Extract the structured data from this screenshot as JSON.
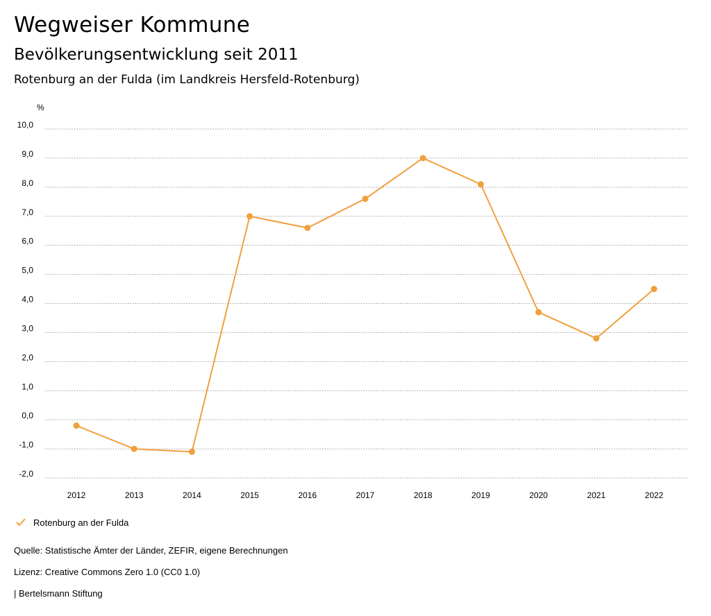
{
  "header": {
    "title": "Wegweiser Kommune",
    "subtitle": "Bevölkerungsentwicklung seit 2011",
    "region": "Rotenburg an der Fulda (im Landkreis Hersfeld-Rotenburg)"
  },
  "chart_data": {
    "type": "line",
    "ylabel": "%",
    "ylim": [
      -2,
      10
    ],
    "yticks": [
      "10,0",
      "9,0",
      "8,0",
      "7,0",
      "6,0",
      "5,0",
      "4,0",
      "3,0",
      "2,0",
      "1,0",
      "0,0",
      "-1,0",
      "-2,0"
    ],
    "x": [
      "2012",
      "2013",
      "2014",
      "2015",
      "2016",
      "2017",
      "2018",
      "2019",
      "2020",
      "2021",
      "2022"
    ],
    "series": [
      {
        "name": "Rotenburg an der Fulda",
        "values": [
          -0.2,
          -1.0,
          -1.1,
          7.0,
          6.6,
          7.6,
          9.0,
          8.1,
          3.7,
          2.8,
          4.5
        ]
      }
    ],
    "color": "#f0a03c",
    "grid": true,
    "legend": "bottom-left"
  },
  "footer": {
    "source": "Quelle: Statistische Ämter der Länder, ZEFIR, eigene Berechnungen",
    "license": "Lizenz: Creative Commons Zero 1.0 (CC0 1.0)",
    "publisher": "| Bertelsmann Stiftung"
  }
}
